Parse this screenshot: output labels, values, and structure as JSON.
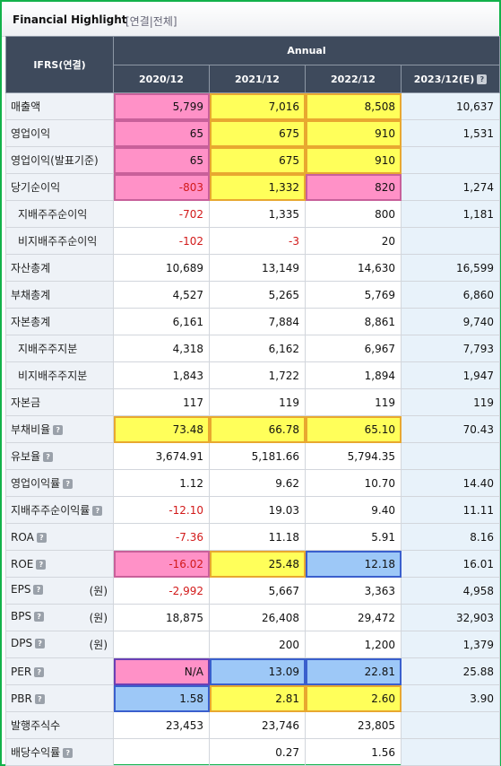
{
  "header": {
    "title": "Financial Highlight",
    "subtitle": "[연결|전체]"
  },
  "table": {
    "corner_label": "IFRS(연결)",
    "group_label": "Annual",
    "columns": [
      "2020/12",
      "2021/12",
      "2022/12",
      "2023/12(E)"
    ],
    "rows": [
      {
        "label": "매출액",
        "indent": false,
        "help": false,
        "unit": "",
        "values": [
          "5,799",
          "7,016",
          "8,508",
          "10,637"
        ],
        "highlights": [
          "pink",
          "yellow",
          "yellow",
          ""
        ]
      },
      {
        "label": "영업이익",
        "indent": false,
        "help": false,
        "unit": "",
        "values": [
          "65",
          "675",
          "910",
          "1,531"
        ],
        "highlights": [
          "pink",
          "yellow",
          "yellow",
          ""
        ]
      },
      {
        "label": "영업이익(발표기준)",
        "indent": false,
        "help": false,
        "unit": "",
        "values": [
          "65",
          "675",
          "910",
          ""
        ],
        "highlights": [
          "pink",
          "yellow",
          "yellow",
          ""
        ]
      },
      {
        "label": "당기순이익",
        "indent": false,
        "help": false,
        "unit": "",
        "values": [
          "-803",
          "1,332",
          "820",
          "1,274"
        ],
        "highlights": [
          "pink",
          "yellow",
          "pink",
          ""
        ]
      },
      {
        "label": "지배주주순이익",
        "indent": true,
        "help": false,
        "unit": "",
        "values": [
          "-702",
          "1,335",
          "800",
          "1,181"
        ],
        "highlights": [
          "",
          "",
          "",
          ""
        ]
      },
      {
        "label": "비지배주주순이익",
        "indent": true,
        "help": false,
        "unit": "",
        "values": [
          "-102",
          "-3",
          "20",
          ""
        ],
        "highlights": [
          "",
          "",
          "",
          ""
        ]
      },
      {
        "label": "자산총계",
        "indent": false,
        "help": false,
        "unit": "",
        "values": [
          "10,689",
          "13,149",
          "14,630",
          "16,599"
        ],
        "highlights": [
          "",
          "",
          "",
          ""
        ]
      },
      {
        "label": "부채총계",
        "indent": false,
        "help": false,
        "unit": "",
        "values": [
          "4,527",
          "5,265",
          "5,769",
          "6,860"
        ],
        "highlights": [
          "",
          "",
          "",
          ""
        ]
      },
      {
        "label": "자본총계",
        "indent": false,
        "help": false,
        "unit": "",
        "values": [
          "6,161",
          "7,884",
          "8,861",
          "9,740"
        ],
        "highlights": [
          "",
          "",
          "",
          ""
        ]
      },
      {
        "label": "지배주주지분",
        "indent": true,
        "help": false,
        "unit": "",
        "values": [
          "4,318",
          "6,162",
          "6,967",
          "7,793"
        ],
        "highlights": [
          "",
          "",
          "",
          ""
        ]
      },
      {
        "label": "비지배주주지분",
        "indent": true,
        "help": false,
        "unit": "",
        "values": [
          "1,843",
          "1,722",
          "1,894",
          "1,947"
        ],
        "highlights": [
          "",
          "",
          "",
          ""
        ]
      },
      {
        "label": "자본금",
        "indent": false,
        "help": false,
        "unit": "",
        "values": [
          "117",
          "119",
          "119",
          "119"
        ],
        "highlights": [
          "",
          "",
          "",
          ""
        ]
      },
      {
        "label": "부채비율",
        "indent": false,
        "help": true,
        "unit": "",
        "values": [
          "73.48",
          "66.78",
          "65.10",
          "70.43"
        ],
        "highlights": [
          "yellow",
          "yellow",
          "yellow",
          ""
        ]
      },
      {
        "label": "유보율",
        "indent": false,
        "help": true,
        "unit": "",
        "values": [
          "3,674.91",
          "5,181.66",
          "5,794.35",
          ""
        ],
        "highlights": [
          "",
          "",
          "",
          ""
        ]
      },
      {
        "label": "영업이익률",
        "indent": false,
        "help": true,
        "unit": "",
        "values": [
          "1.12",
          "9.62",
          "10.70",
          "14.40"
        ],
        "highlights": [
          "",
          "",
          "",
          ""
        ]
      },
      {
        "label": "지배주주순이익률",
        "indent": false,
        "help": true,
        "unit": "",
        "values": [
          "-12.10",
          "19.03",
          "9.40",
          "11.11"
        ],
        "highlights": [
          "",
          "",
          "",
          ""
        ]
      },
      {
        "label": "ROA",
        "indent": false,
        "help": true,
        "unit": "",
        "values": [
          "-7.36",
          "11.18",
          "5.91",
          "8.16"
        ],
        "highlights": [
          "",
          "",
          "",
          ""
        ]
      },
      {
        "label": "ROE",
        "indent": false,
        "help": true,
        "unit": "",
        "values": [
          "-16.02",
          "25.48",
          "12.18",
          "16.01"
        ],
        "highlights": [
          "pink",
          "yellow",
          "blue",
          ""
        ]
      },
      {
        "label": "EPS",
        "indent": false,
        "help": true,
        "unit": "(원)",
        "values": [
          "-2,992",
          "5,667",
          "3,363",
          "4,958"
        ],
        "highlights": [
          "",
          "",
          "",
          ""
        ]
      },
      {
        "label": "BPS",
        "indent": false,
        "help": true,
        "unit": "(원)",
        "values": [
          "18,875",
          "26,408",
          "29,472",
          "32,903"
        ],
        "highlights": [
          "",
          "",
          "",
          ""
        ]
      },
      {
        "label": "DPS",
        "indent": false,
        "help": true,
        "unit": "(원)",
        "values": [
          "",
          "200",
          "1,200",
          "1,379"
        ],
        "highlights": [
          "",
          "",
          "",
          ""
        ]
      },
      {
        "label": "PER",
        "indent": false,
        "help": true,
        "unit": "",
        "values": [
          "N/A",
          "13.09",
          "22.81",
          "25.88"
        ],
        "highlights": [
          "pink",
          "blue",
          "blue",
          ""
        ]
      },
      {
        "label": "PBR",
        "indent": false,
        "help": true,
        "unit": "",
        "values": [
          "1.58",
          "2.81",
          "2.60",
          "3.90"
        ],
        "highlights": [
          "blue",
          "yellow",
          "yellow",
          ""
        ]
      },
      {
        "label": "발행주식수",
        "indent": false,
        "help": false,
        "unit": "",
        "values": [
          "23,453",
          "23,746",
          "23,805",
          ""
        ],
        "highlights": [
          "",
          "",
          "",
          ""
        ]
      },
      {
        "label": "배당수익률",
        "indent": false,
        "help": true,
        "unit": "",
        "values": [
          "",
          "0.27",
          "1.56",
          ""
        ],
        "highlights": [
          "",
          "",
          "",
          ""
        ]
      }
    ]
  },
  "colors": {
    "frame_border": "#12b24a",
    "header_bg": "#3e4a5c",
    "highlight_pink": "#ff91c7",
    "highlight_yellow": "#ffff5a",
    "highlight_blue": "#9dc8f7",
    "negative_text": "#d21a1a"
  },
  "icons": {
    "help": "help-question-icon"
  }
}
